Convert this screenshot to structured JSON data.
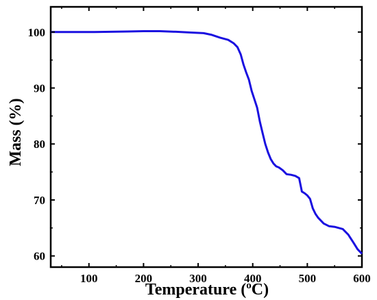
{
  "chart_data": {
    "type": "line",
    "title": "",
    "xlabel": {
      "main": "Temperature (",
      "sup": "o",
      "tail": "C)"
    },
    "ylabel": "Mass (%)",
    "xlim": [
      30,
      600
    ],
    "ylim": [
      58,
      104.5
    ],
    "xticks": [
      100,
      200,
      300,
      400,
      500,
      600
    ],
    "yticks": [
      60,
      70,
      80,
      90,
      100
    ],
    "grid": false,
    "legend": "none",
    "series": [
      {
        "color": "#1a10e0",
        "x": [
          30,
          50,
          80,
          110,
          140,
          170,
          200,
          230,
          260,
          290,
          310,
          325,
          340,
          355,
          365,
          372,
          378,
          383,
          388,
          393,
          398,
          403,
          408,
          413,
          418,
          423,
          428,
          433,
          438,
          443,
          448,
          455,
          462,
          470,
          478,
          485,
          490,
          495,
          500,
          505,
          510,
          515,
          520,
          530,
          540,
          550,
          565,
          575,
          585,
          592,
          600
        ],
        "y": [
          100.0,
          100.0,
          100.0,
          100.0,
          100.05,
          100.1,
          100.15,
          100.15,
          100.05,
          99.9,
          99.8,
          99.5,
          99.0,
          98.6,
          98.0,
          97.3,
          96.0,
          94.2,
          92.8,
          91.5,
          89.5,
          88.0,
          86.5,
          84.0,
          82.0,
          80.0,
          78.5,
          77.3,
          76.5,
          76.0,
          75.8,
          75.3,
          74.6,
          74.5,
          74.3,
          73.9,
          71.5,
          71.2,
          70.8,
          70.2,
          68.5,
          67.5,
          66.8,
          65.8,
          65.3,
          65.2,
          64.8,
          63.8,
          62.3,
          61.2,
          60.4
        ]
      }
    ]
  }
}
